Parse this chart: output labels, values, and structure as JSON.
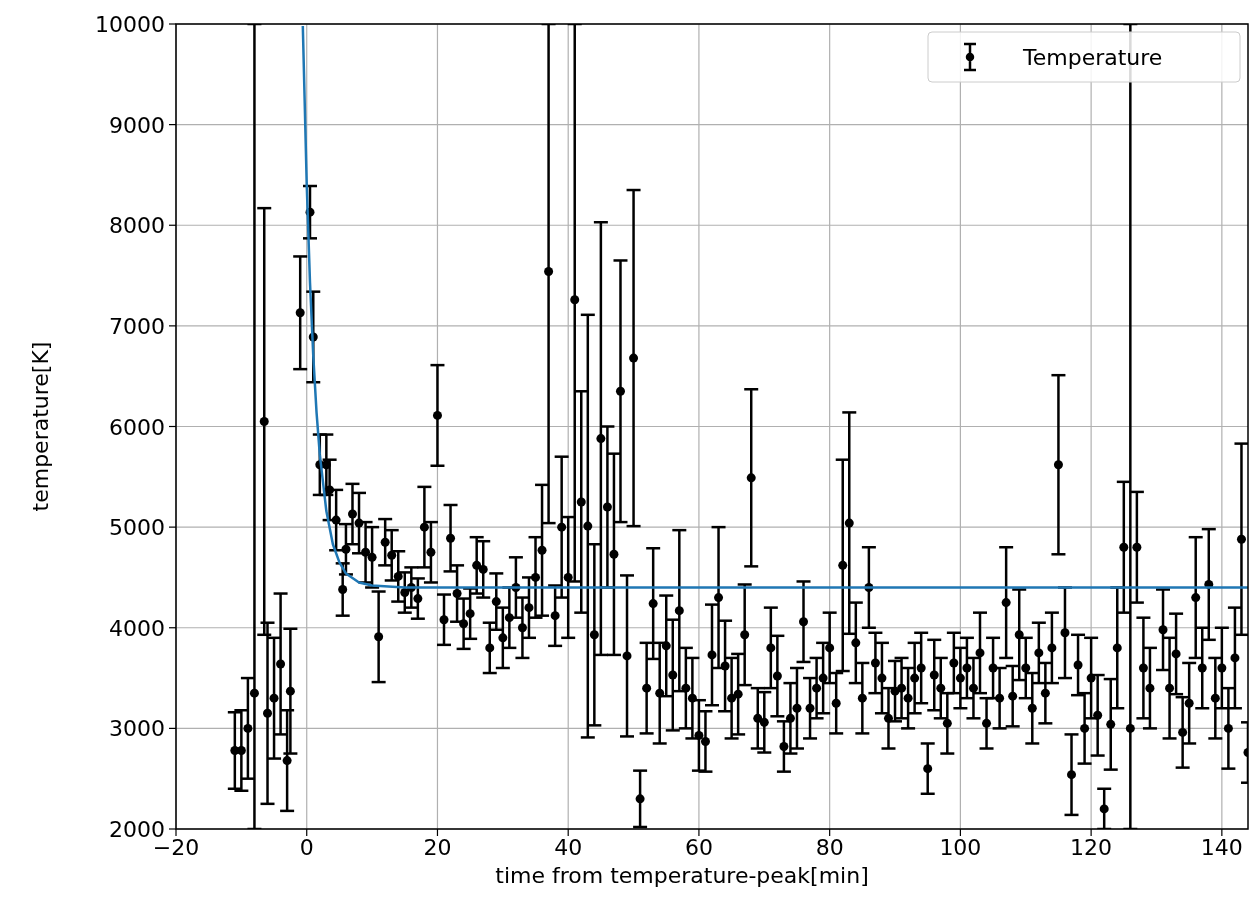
{
  "chart_data": {
    "type": "scatter",
    "xlabel": "time from temperature-peak[min]",
    "ylabel": "temperature[K]",
    "xlim": [
      -20,
      144
    ],
    "ylim": [
      2000,
      10000
    ],
    "xticks": [
      {
        "value": -20,
        "label": "−20"
      },
      0,
      20,
      40,
      60,
      80,
      100,
      120,
      140
    ],
    "yticks": [
      2000,
      3000,
      4000,
      5000,
      6000,
      7000,
      8000,
      9000,
      10000
    ],
    "grid": true,
    "legend": "top right",
    "series": [
      {
        "name": "Temperature",
        "color": "#000000",
        "marker": "circle",
        "x": [
          -11,
          -10,
          -9,
          -8,
          -6.5,
          -6,
          -5,
          -4,
          -3,
          -2.5,
          -1,
          0.5,
          1,
          2,
          3,
          3.5,
          4.5,
          5.5,
          6,
          7,
          8,
          9,
          10,
          11,
          12,
          13,
          14,
          15,
          16,
          17,
          18,
          19,
          20,
          21,
          22,
          23,
          24,
          25,
          26,
          27,
          28,
          29,
          30,
          31,
          32,
          33,
          34,
          35,
          36,
          37,
          38,
          39,
          40,
          41,
          42,
          43,
          44,
          45,
          46,
          47,
          48,
          49,
          50,
          51,
          52,
          53,
          54,
          55,
          56,
          57,
          58,
          59,
          60,
          61,
          62,
          63,
          64,
          65,
          66,
          67,
          68,
          69,
          70,
          71,
          72,
          73,
          74,
          75,
          76,
          77,
          78,
          79,
          80,
          81,
          82,
          83,
          84,
          85,
          86,
          87,
          88,
          89,
          90,
          91,
          92,
          93,
          94,
          95,
          96,
          97,
          98,
          99,
          100,
          101,
          102,
          103,
          104,
          105,
          106,
          107,
          108,
          109,
          110,
          111,
          112,
          113,
          114,
          115,
          116,
          117,
          118,
          119,
          120,
          121,
          122,
          123,
          124,
          125,
          126,
          127,
          128,
          129,
          131,
          132,
          133,
          134,
          135,
          136,
          137,
          138,
          139,
          140,
          141,
          142,
          143,
          144
        ],
        "values": [
          2780,
          2780,
          3000,
          3350,
          6050,
          3150,
          3300,
          3640,
          2680,
          3370,
          7130,
          8130,
          6890,
          5620,
          5620,
          5370,
          5070,
          4380,
          4780,
          5130,
          5040,
          4750,
          4700,
          3910,
          4850,
          4720,
          4510,
          4350,
          4400,
          4290,
          5000,
          4750,
          6110,
          4080,
          4890,
          4340,
          4040,
          4140,
          4620,
          4580,
          3800,
          4260,
          3900,
          4100,
          4400,
          4000,
          4200,
          4500,
          4770,
          7540,
          4120,
          5000,
          4500,
          7260,
          5250,
          5010,
          3930,
          5880,
          5200,
          4730,
          6350,
          3720,
          6680,
          2300,
          3400,
          4240,
          3350,
          3820,
          3530,
          4170,
          3400,
          3300,
          2930,
          2870,
          3730,
          4300,
          3620,
          3300,
          3340,
          3930,
          5490,
          3100,
          3060,
          3800,
          3520,
          2820,
          3100,
          3200,
          4060,
          3200,
          3400,
          3500,
          3800,
          3250,
          4620,
          5040,
          3850,
          3300,
          4400,
          3650,
          3500,
          3100,
          3370,
          3400,
          3300,
          3500,
          3600,
          2600,
          3530,
          3400,
          3050,
          3650,
          3500,
          3600,
          3400,
          3750,
          3050,
          3600,
          3300,
          4250,
          3320,
          3930,
          3600,
          3200,
          3750,
          3350,
          3800,
          5620,
          3950,
          2540,
          3630,
          3000,
          3500,
          3130,
          2200,
          3040,
          3800,
          4800,
          3000,
          4800,
          3600,
          3400,
          3980,
          3400,
          3740,
          2960,
          3250,
          4300,
          3600,
          4430,
          3300,
          3600,
          3000,
          3700,
          4880,
          2760
        ],
        "errors": [
          380,
          400,
          500,
          [
            2000,
            10000
          ],
          2120,
          900,
          600,
          700,
          500,
          620,
          560,
          260,
          450,
          300,
          300,
          300,
          300,
          260,
          250,
          300,
          300,
          300,
          300,
          450,
          230,
          250,
          250,
          200,
          200,
          200,
          400,
          300,
          500,
          250,
          330,
          280,
          250,
          250,
          280,
          280,
          250,
          280,
          300,
          300,
          300,
          300,
          300,
          400,
          650,
          [
            5040,
            10000
          ],
          300,
          700,
          600,
          [
            4460,
            10000
          ],
          1100,
          2100,
          900,
          2150,
          800,
          1000,
          1300,
          800,
          1670,
          280,
          450,
          550,
          500,
          500,
          550,
          800,
          400,
          400,
          350,
          300,
          500,
          700,
          450,
          400,
          400,
          500,
          880,
          300,
          300,
          400,
          400,
          250,
          350,
          400,
          400,
          300,
          300,
          350,
          350,
          300,
          1050,
          1100,
          400,
          350,
          400,
          300,
          350,
          300,
          300,
          300,
          300,
          350,
          350,
          250,
          350,
          300,
          300,
          300,
          300,
          300,
          300,
          400,
          250,
          300,
          300,
          550,
          300,
          450,
          300,
          350,
          300,
          300,
          350,
          890,
          450,
          400,
          300,
          350,
          400,
          400,
          200,
          450,
          600,
          650,
          [
            2000,
            10000
          ],
          550,
          500,
          400,
          400,
          500,
          400,
          350,
          400,
          600,
          400,
          550,
          400,
          400,
          400,
          500,
          950,
          300
        ]
      },
      {
        "type": "line",
        "color": "#1f77b4",
        "marker": "none",
        "x": [
          -0.6,
          0,
          0.5,
          1,
          1.5,
          2,
          3,
          4,
          5,
          6,
          8,
          10,
          15,
          144
        ],
        "values": [
          9980,
          8400,
          7430,
          6700,
          6140,
          5720,
          5160,
          4830,
          4650,
          4540,
          4450,
          4420,
          4400,
          4400
        ]
      }
    ]
  }
}
